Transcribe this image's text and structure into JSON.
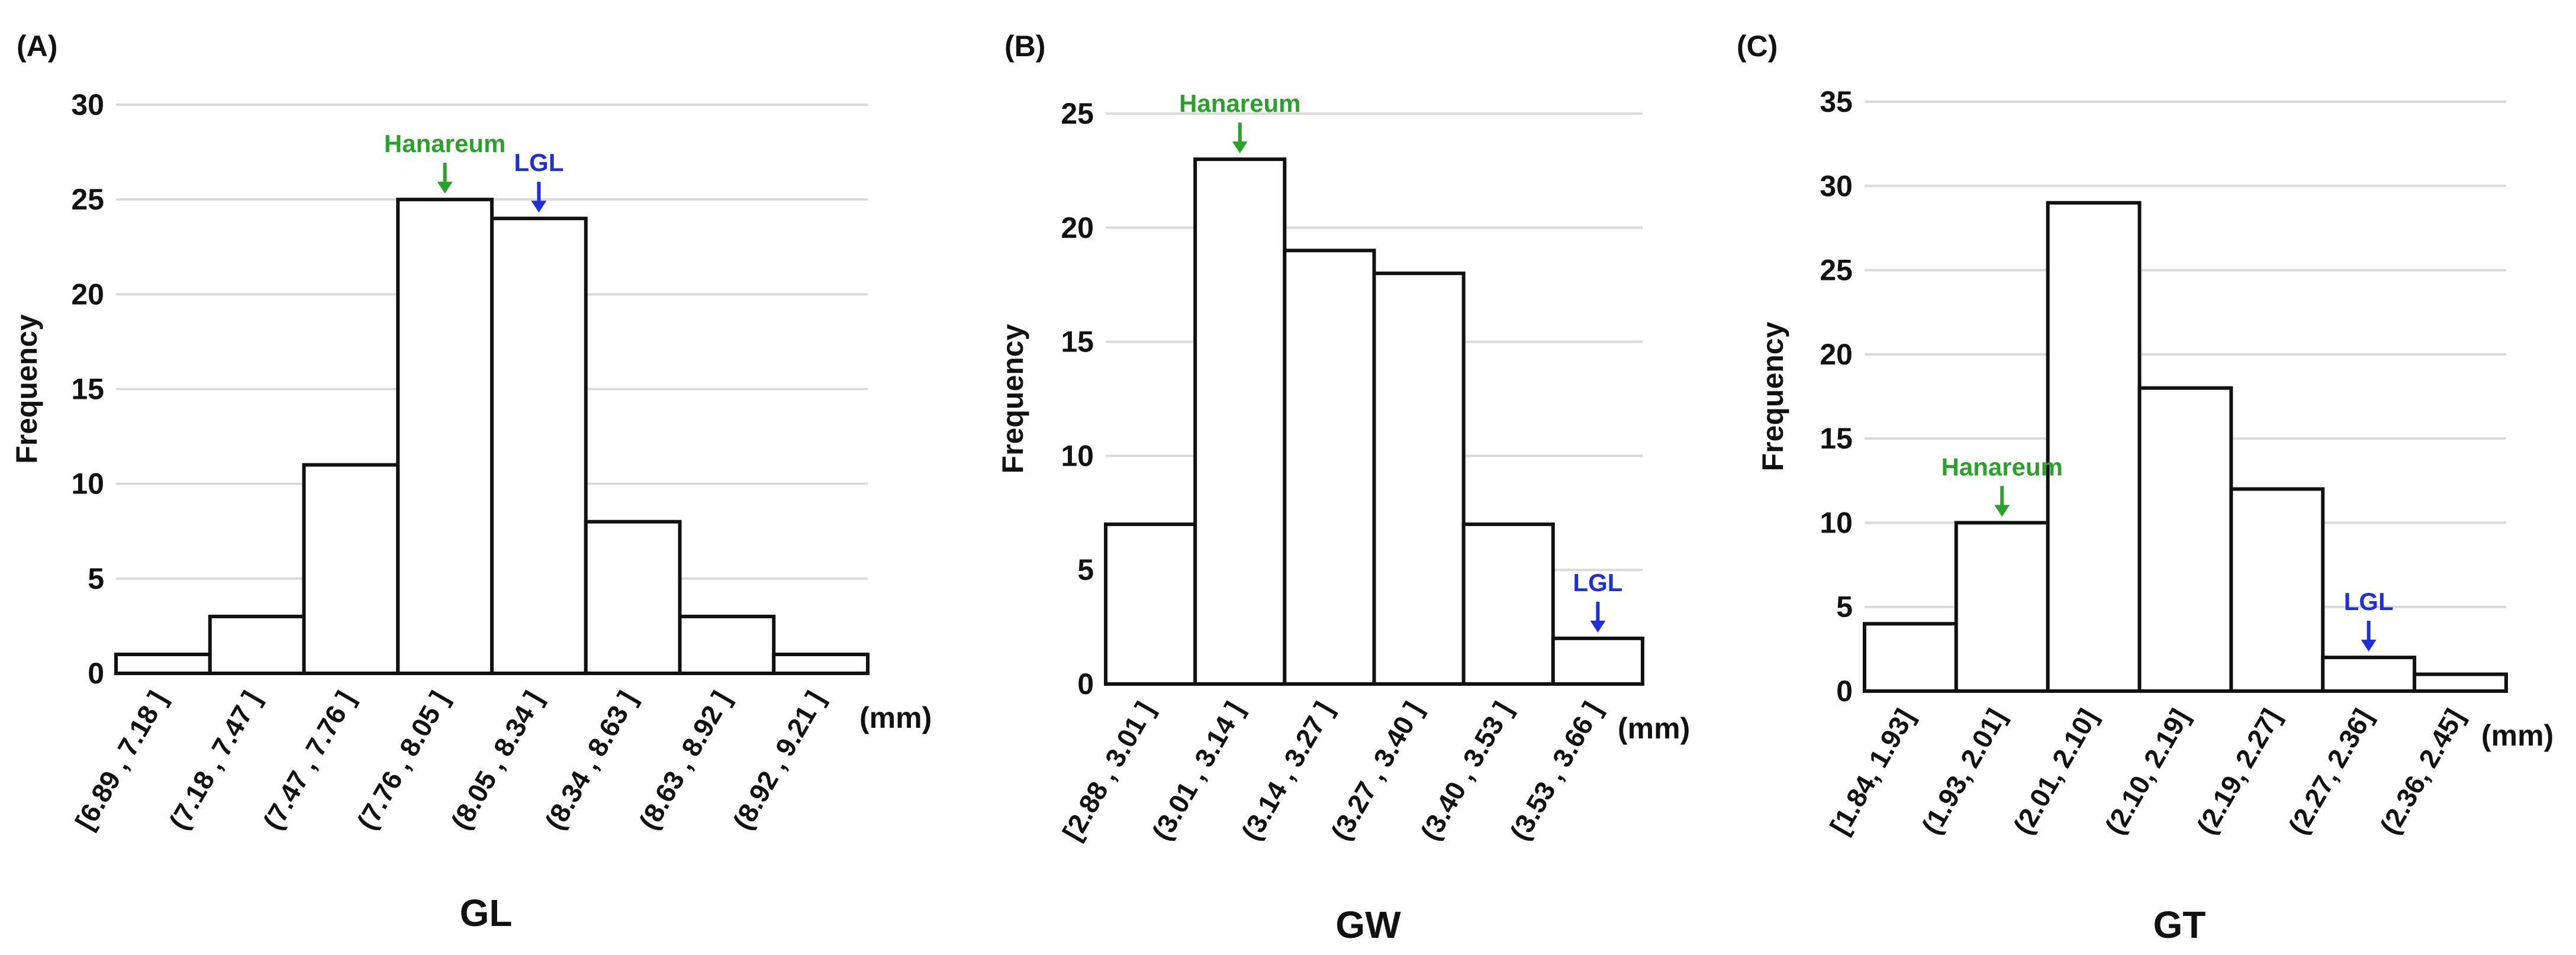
{
  "figure": {
    "colors": {
      "text": "#111111",
      "bar_fill": "#ffffff",
      "bar_stroke": "#111111",
      "grid": "#d9d9d9",
      "hanareum": "#2ca02c",
      "lgl": "#1f2fd8"
    }
  },
  "chart_data": [
    {
      "type": "bar",
      "panel_label": "(A)",
      "title": "",
      "xlabel": "GL",
      "ylabel": "Frequency",
      "unit_label": "(mm)",
      "categories": [
        "[6.89 , 7.18 ]",
        "(7.18 , 7.47 ]",
        "(7.47 , 7.76 ]",
        "(7.76 , 8.05 ]",
        "(8.05 , 8.34 ]",
        "(8.34 , 8.63 ]",
        "(8.63 , 8.92 ]",
        "(8.92 , 9.21 ]"
      ],
      "values": [
        1,
        3,
        11,
        25,
        24,
        8,
        3,
        1
      ],
      "ylim": [
        0,
        30
      ],
      "yticks": [
        0,
        5,
        10,
        15,
        20,
        25,
        30
      ],
      "grid": true,
      "annotations": [
        {
          "text": "Hanareum",
          "bar_index": 3,
          "color_key": "hanareum"
        },
        {
          "text": "LGL",
          "bar_index": 4,
          "color_key": "lgl"
        }
      ]
    },
    {
      "type": "bar",
      "panel_label": "(B)",
      "title": "",
      "xlabel": "GW",
      "ylabel": "Frequency",
      "unit_label": "(mm)",
      "categories": [
        "[2.88 , 3.01 ]",
        "(3.01 , 3.14 ]",
        "(3.14 , 3.27 ]",
        "(3.27 , 3.40 ]",
        "(3.40 , 3.53 ]",
        "(3.53 , 3.66 ]"
      ],
      "values": [
        7,
        23,
        19,
        18,
        7,
        2
      ],
      "ylim": [
        0,
        25
      ],
      "yticks": [
        0,
        5,
        10,
        15,
        20,
        25
      ],
      "grid": true,
      "annotations": [
        {
          "text": "Hanareum",
          "bar_index": 1,
          "color_key": "hanareum"
        },
        {
          "text": "LGL",
          "bar_index": 5,
          "color_key": "lgl"
        }
      ]
    },
    {
      "type": "bar",
      "panel_label": "(C)",
      "title": "",
      "xlabel": "GT",
      "ylabel": "Frequency",
      "unit_label": "(mm)",
      "categories": [
        "[1.84, 1.93]",
        "(1.93, 2.01]",
        "(2.01, 2.10]",
        "(2.10, 2.19]",
        "(2.19, 2.27]",
        "(2.27, 2.36]",
        "(2.36, 2.45]"
      ],
      "values": [
        4,
        10,
        29,
        18,
        12,
        2,
        1
      ],
      "ylim": [
        0,
        35
      ],
      "yticks": [
        0,
        5,
        10,
        15,
        20,
        25,
        30,
        35
      ],
      "grid": true,
      "annotations": [
        {
          "text": "Hanareum",
          "bar_index": 1,
          "color_key": "hanareum"
        },
        {
          "text": "LGL",
          "bar_index": 5,
          "color_key": "lgl"
        }
      ]
    }
  ]
}
